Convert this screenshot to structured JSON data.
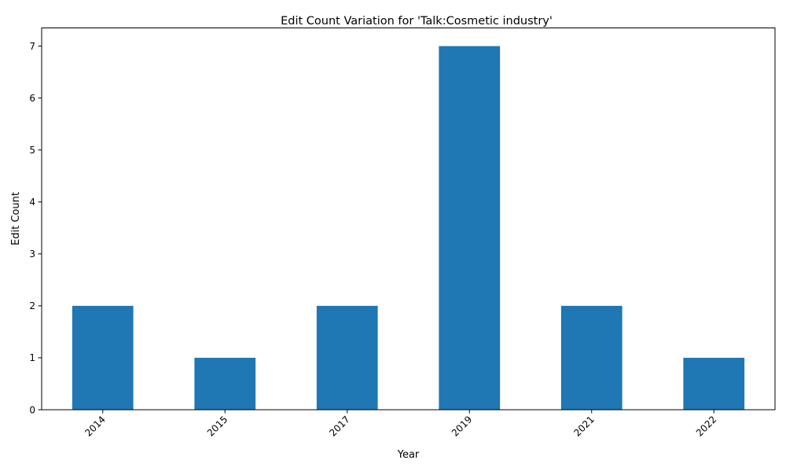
{
  "chart_data": {
    "type": "bar",
    "title": "Edit Count Variation for 'Talk:Cosmetic industry'",
    "xlabel": "Year",
    "ylabel": "Edit Count",
    "categories": [
      "2014",
      "2015",
      "2017",
      "2019",
      "2021",
      "2022"
    ],
    "values": [
      2,
      1,
      2,
      7,
      2,
      1
    ],
    "ylim": [
      0,
      7.35
    ],
    "yticks": [
      0,
      1,
      2,
      3,
      4,
      5,
      6,
      7
    ],
    "xtick_rotation_deg": 45,
    "grid": false,
    "legend": "none",
    "bar_color": "#1f77b4"
  }
}
